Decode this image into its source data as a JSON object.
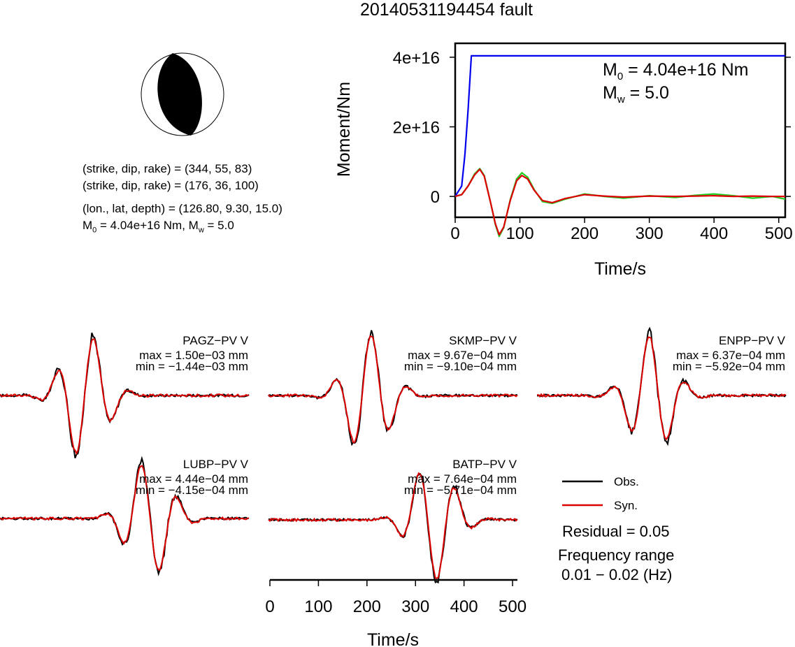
{
  "title": "20140531194454 fault",
  "focal_info": {
    "np1": "(strike, dip, rake) = (344, 55, 83)",
    "np2": "(strike, dip, rake) = (176, 36, 100)",
    "location": "(lon., lat, depth) = (126.80, 9.30, 15.0)",
    "moment_prefix": "M",
    "moment_sub": "0",
    "moment_mid": " = 4.04e+16 Nm, M",
    "mw_sub": "w",
    "mw_suffix": " = 5.0"
  },
  "moment_annot": {
    "m0_label": "M",
    "m0_sub": "0",
    "m0_text": " = 4.04e+16 Nm",
    "mw_label": "M",
    "mw_sub": "w",
    "mw_text": " = 5.0"
  },
  "legend": {
    "obs": "Obs.",
    "syn": "Syn.",
    "residual": "Residual = 0.05",
    "freq_title": "Frequency range",
    "freq_value": "0.01 − 0.02 (Hz)"
  },
  "colors": {
    "moment": "#0000ee",
    "observed": "#000000",
    "synthetic": "#dd0000",
    "stf_synthetic": "#22cc22"
  },
  "chart_data": [
    {
      "type": "line",
      "xlabel": "Time/s",
      "ylabel": "Moment/Nm",
      "xlim": [
        0,
        510
      ],
      "ylim": [
        -6000000000000000.0,
        4.4e+16
      ],
      "xticks": [
        0,
        100,
        200,
        300,
        400,
        500
      ],
      "yticks": [
        0,
        2e+16,
        4e+16
      ],
      "ytick_labels": [
        "0",
        "2e+16",
        "4e+16"
      ],
      "series": [
        {
          "x": [
            0,
            10,
            15,
            20,
            25,
            510
          ],
          "values": [
            0,
            3000000000000000.0,
            1.2e+16,
            2.5e+16,
            4.04e+16,
            4.04e+16
          ]
        },
        {
          "x": [
            0,
            10,
            20,
            30,
            38,
            45,
            55,
            62,
            68,
            75,
            85,
            95,
            103,
            112,
            122,
            135,
            150,
            170,
            200,
            230,
            260,
            300,
            340,
            370,
            400,
            430,
            460,
            490,
            510
          ],
          "values": [
            0,
            500000000000000.0,
            3000000000000000.0,
            6500000000000000.0,
            8000000000000000.0,
            6000000000000000.0,
            -2000000000000000.0,
            -8000000000000000.0,
            -1.15e+16,
            -9000000000000000.0,
            -1000000000000000.0,
            5000000000000000.0,
            6800000000000000.0,
            5500000000000000.0,
            2000000000000000.0,
            -1500000000000000.0,
            -2000000000000000.0,
            -800000000000000.0,
            700000000000000.0,
            0,
            -500000000000000.0,
            200000000000000.0,
            -300000000000000.0,
            300000000000000.0,
            700000000000000.0,
            200000000000000.0,
            -500000000000000.0,
            0,
            -800000000000000.0
          ]
        },
        {
          "x": [
            0,
            10,
            20,
            30,
            38,
            45,
            55,
            62,
            68,
            75,
            85,
            95,
            103,
            112,
            122,
            135,
            150,
            170,
            200,
            230,
            260,
            300,
            340,
            370,
            400,
            430,
            460,
            490,
            510
          ],
          "values": [
            0,
            500000000000000.0,
            3000000000000000.0,
            6200000000000000.0,
            7800000000000000.0,
            5800000000000000.0,
            -2000000000000000.0,
            -7800000000000000.0,
            -1.1e+16,
            -8800000000000000.0,
            -1200000000000000.0,
            4500000000000000.0,
            6000000000000000.0,
            5000000000000000.0,
            1800000000000000.0,
            -1200000000000000.0,
            -1800000000000000.0,
            -600000000000000.0,
            500000000000000.0,
            100000000000000.0,
            -200000000000000.0,
            100000000000000.0,
            0,
            100000000000000.0,
            200000000000000.0,
            0,
            100000000000000.0,
            0,
            0
          ]
        }
      ]
    },
    {
      "type": "line",
      "xlabel": "Time/s",
      "xlim": [
        0,
        510
      ],
      "xticks": [
        0,
        100,
        200,
        300,
        400,
        500
      ],
      "stations": [
        {
          "name": "PAGZ−PV V",
          "max": "max = 1.50e−03 mm",
          "min": "min = −1.44e−03 mm"
        },
        {
          "name": "SKMP−PV V",
          "max": "max = 9.67e−04 mm",
          "min": "min = −9.10e−04 mm"
        },
        {
          "name": "ENPP−PV V",
          "max": "max = 6.37e−04 mm",
          "min": "min = −5.92e−04 mm"
        },
        {
          "name": "LUBP−PV V",
          "max": "max = 4.44e−04 mm",
          "min": "min = −4.15e−04 mm"
        },
        {
          "name": "BATP−PV V",
          "max": "max = 7.64e−04 mm",
          "min": "min = −5.71e−04 mm"
        }
      ]
    }
  ]
}
